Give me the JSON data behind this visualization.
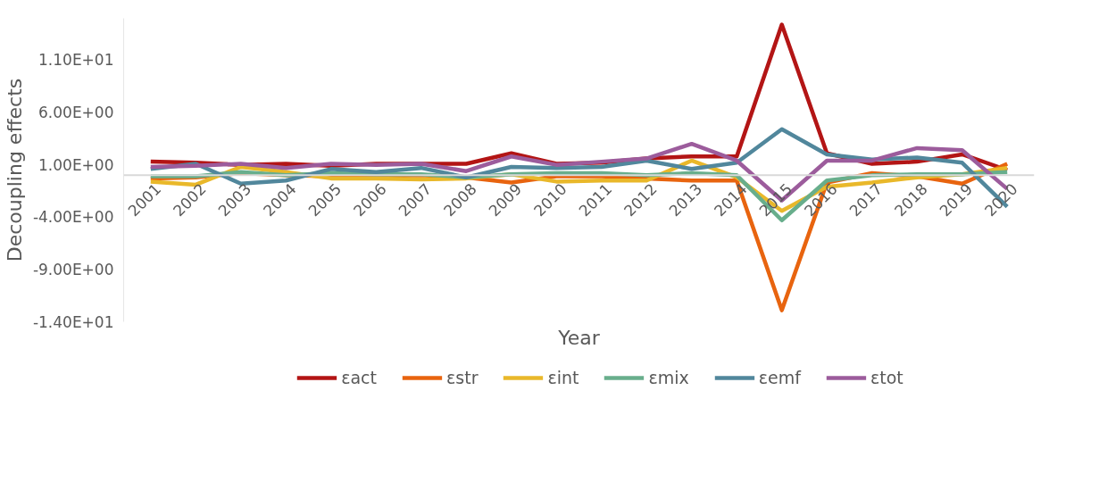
{
  "chart_data": {
    "type": "line",
    "xlabel": "Year",
    "ylabel": "Decoupling effects",
    "categories": [
      "2001",
      "2002",
      "2003",
      "2004",
      "2005",
      "2006",
      "2007",
      "2008",
      "2009",
      "2010",
      "2011",
      "2012",
      "2013",
      "2014",
      "2015",
      "2016",
      "2017",
      "2018",
      "2019",
      "2020"
    ],
    "series": [
      {
        "name": "εact",
        "color": "#b31515",
        "values": [
          1.3,
          1.2,
          1.0,
          1.1,
          0.9,
          1.1,
          1.1,
          1.1,
          2.1,
          1.1,
          1.2,
          1.6,
          1.8,
          1.8,
          14.4,
          2.1,
          1.1,
          1.3,
          2.0,
          0.5
        ]
      },
      {
        "name": "εstr",
        "color": "#e8640f",
        "values": [
          -0.3,
          -0.2,
          0.2,
          0.0,
          -0.1,
          -0.1,
          0.0,
          -0.2,
          -0.7,
          -0.1,
          -0.1,
          -0.3,
          -0.5,
          -0.5,
          -12.9,
          -0.7,
          0.2,
          -0.1,
          -0.8,
          1.1
        ]
      },
      {
        "name": "εint",
        "color": "#e9b82a",
        "values": [
          -0.6,
          -0.9,
          0.8,
          0.3,
          -0.3,
          -0.3,
          -0.4,
          -0.3,
          0.1,
          -0.6,
          -0.5,
          -0.5,
          1.4,
          -0.2,
          -3.4,
          -1.1,
          -0.7,
          -0.2,
          0.1,
          0.7
        ]
      },
      {
        "name": "εmix",
        "color": "#68ae8c",
        "values": [
          -0.1,
          -0.1,
          0.3,
          0.0,
          0.2,
          0.1,
          0.1,
          -0.2,
          0.1,
          0.2,
          0.2,
          0.0,
          0.2,
          0.0,
          -4.3,
          -0.5,
          0.0,
          0.1,
          0.1,
          0.3
        ]
      },
      {
        "name": "εemf",
        "color": "#51879c",
        "values": [
          0.6,
          1.1,
          -0.8,
          -0.5,
          0.6,
          0.3,
          0.7,
          -0.2,
          0.8,
          0.7,
          0.8,
          1.4,
          0.6,
          1.2,
          4.4,
          2.0,
          1.5,
          1.7,
          1.2,
          -3.0
        ]
      },
      {
        "name": "εtot",
        "color": "#9c5c9c",
        "values": [
          0.8,
          0.9,
          1.1,
          0.7,
          1.1,
          1.0,
          1.1,
          0.4,
          1.8,
          1.0,
          1.3,
          1.6,
          3.0,
          1.4,
          -2.4,
          1.4,
          1.4,
          2.6,
          2.4,
          -1.3
        ]
      }
    ],
    "ylim": [
      -14,
      15
    ],
    "yticks": [
      {
        "value": -14,
        "label": "-1.40E+01"
      },
      {
        "value": -9,
        "label": "-9.00E+00"
      },
      {
        "value": -4,
        "label": "-4.00E+00"
      },
      {
        "value": 1,
        "label": "1.00E+00"
      },
      {
        "value": 6,
        "label": "6.00E+00"
      },
      {
        "value": 11,
        "label": "1.10E+01"
      }
    ],
    "grid": false,
    "legend": "bottom",
    "line_style": "solid",
    "marker": "none"
  }
}
